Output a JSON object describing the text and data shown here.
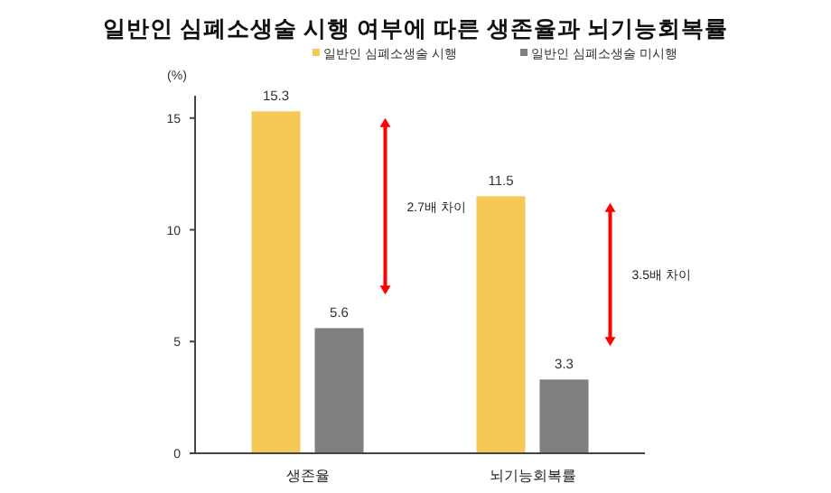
{
  "chart_data": {
    "type": "bar",
    "title": "일반인 심폐소생술 시행 여부에 따른 생존율과 뇌기능회복률",
    "ylabel": "(%)",
    "categories": [
      "생존율",
      "뇌기능회복률"
    ],
    "series": [
      {
        "name": "일반인 심폐소생술 시행",
        "color": "#f5c955",
        "values": [
          15.3,
          11.5
        ]
      },
      {
        "name": "일반인 심폐소생술 미시행",
        "color": "#7f7f7f",
        "values": [
          5.6,
          3.3
        ]
      }
    ],
    "ylim": [
      0,
      16
    ],
    "yticks": [
      0,
      5,
      10,
      15
    ],
    "data_labels": true,
    "grid": false,
    "legend": "top",
    "annotations": [
      "2.7배 차이",
      "3.5배 차이"
    ]
  }
}
